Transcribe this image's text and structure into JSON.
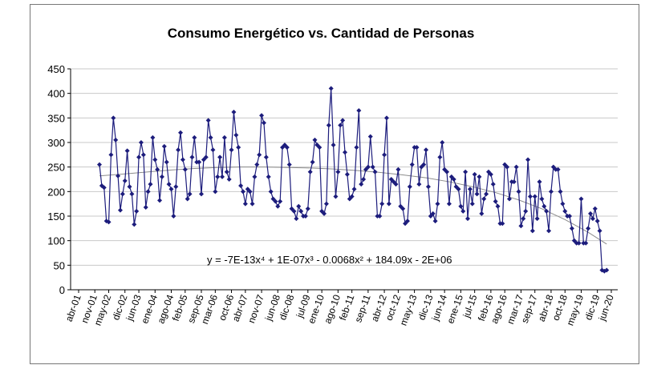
{
  "chart_data": {
    "type": "line",
    "title": "Consumo Energético vs. Cantidad de Personas",
    "annotation": "y = -7E-13x⁴ + 1E-07x³ - 0.0068x² + 184.09x - 2E+06",
    "categories": [
      "abr-01",
      null,
      null,
      null,
      null,
      null,
      null,
      "nov-01",
      null,
      null,
      null,
      null,
      null,
      "may-02",
      null,
      null,
      null,
      null,
      null,
      null,
      "dic-02",
      null,
      null,
      null,
      null,
      null,
      "jun-03",
      null,
      null,
      null,
      null,
      null,
      null,
      "ene-04",
      null,
      null,
      null,
      null,
      null,
      null,
      "ago-04",
      null,
      null,
      null,
      null,
      null,
      "feb-05",
      null,
      null,
      null,
      null,
      null,
      null,
      "sep-05",
      null,
      null,
      null,
      null,
      null,
      "mar-06",
      null,
      null,
      null,
      null,
      null,
      null,
      "oct-06",
      null,
      null,
      null,
      null,
      null,
      "abr-07",
      null,
      null,
      null,
      null,
      null,
      null,
      "nov-07",
      null,
      null,
      null,
      null,
      null,
      null,
      "jun-08",
      null,
      null,
      null,
      null,
      null,
      "dic-08",
      null,
      null,
      null,
      null,
      null,
      null,
      "jul-09",
      null,
      null,
      null,
      null,
      null,
      "ene-10",
      null,
      null,
      null,
      null,
      null,
      null,
      "ago-10",
      null,
      null,
      null,
      null,
      null,
      "feb-11",
      null,
      null,
      null,
      null,
      null,
      null,
      "sep-11",
      null,
      null,
      null,
      null,
      null,
      null,
      "abr-12",
      null,
      null,
      null,
      null,
      null,
      "oct-12",
      null,
      null,
      null,
      null,
      null,
      null,
      "may-13",
      null,
      null,
      null,
      null,
      null,
      null,
      "dic-13",
      null,
      null,
      null,
      null,
      null,
      "jun-14",
      null,
      null,
      null,
      null,
      null,
      null,
      "ene-15",
      null,
      null,
      null,
      null,
      null,
      "jul-15",
      null,
      null,
      null,
      null,
      null,
      null,
      "feb-16",
      null,
      null,
      null,
      null,
      null,
      "ago-16",
      null,
      null,
      null,
      null,
      null,
      null,
      "mar-17",
      null,
      null,
      null,
      null,
      null,
      "sep-17",
      null,
      null,
      null,
      null,
      null,
      null,
      "abr-18",
      null,
      null,
      null,
      null,
      null,
      "oct-18",
      null,
      null,
      null,
      null,
      null,
      null,
      "may-19",
      null,
      null,
      null,
      null,
      null,
      null,
      "dic-19",
      null,
      null,
      null,
      null,
      null,
      "jun-20"
    ],
    "series": [
      {
        "color": "#1c1c7c",
        "values": [
          null,
          null,
          null,
          null,
          null,
          null,
          null,
          null,
          null,
          255,
          212,
          208,
          140,
          138,
          275,
          350,
          305,
          232,
          162,
          195,
          222,
          283,
          210,
          195,
          133,
          160,
          270,
          300,
          275,
          168,
          200,
          215,
          310,
          265,
          245,
          182,
          230,
          292,
          260,
          215,
          205,
          150,
          210,
          285,
          320,
          265,
          245,
          185,
          195,
          270,
          310,
          260,
          260,
          195,
          265,
          270,
          345,
          310,
          285,
          200,
          230,
          270,
          230,
          310,
          240,
          225,
          285,
          362,
          315,
          290,
          212,
          200,
          175,
          205,
          200,
          175,
          230,
          255,
          275,
          355,
          340,
          270,
          230,
          200,
          185,
          180,
          170,
          180,
          290,
          295,
          290,
          255,
          165,
          160,
          145,
          170,
          160,
          150,
          150,
          165,
          240,
          260,
          305,
          295,
          290,
          160,
          155,
          175,
          335,
          410,
          295,
          190,
          240,
          335,
          345,
          280,
          235,
          185,
          190,
          205,
          290,
          365,
          215,
          225,
          245,
          250,
          312,
          250,
          240,
          150,
          150,
          175,
          275,
          350,
          175,
          225,
          220,
          215,
          245,
          170,
          165,
          135,
          140,
          210,
          255,
          290,
          290,
          215,
          250,
          255,
          285,
          210,
          150,
          155,
          140,
          175,
          270,
          300,
          245,
          240,
          175,
          230,
          225,
          210,
          205,
          170,
          160,
          240,
          145,
          205,
          175,
          235,
          195,
          230,
          155,
          185,
          195,
          240,
          235,
          215,
          180,
          170,
          135,
          135,
          255,
          250,
          185,
          220,
          220,
          250,
          200,
          130,
          145,
          160,
          265,
          190,
          120,
          190,
          145,
          220,
          185,
          170,
          160,
          120,
          200,
          250,
          245,
          245,
          200,
          175,
          160,
          150,
          150,
          125,
          100,
          95,
          95,
          185,
          95,
          95,
          125,
          155,
          145,
          165,
          140,
          120,
          40,
          38,
          40,
          null,
          null
        ]
      }
    ],
    "trendline": {
      "color": "#8c8c8c",
      "x": [
        9,
        20,
        30,
        40,
        50,
        60,
        70,
        80,
        90,
        100,
        110,
        120,
        130,
        140,
        150,
        160,
        170,
        180,
        190,
        200,
        210,
        220,
        228
      ],
      "values": [
        232,
        236,
        240,
        244,
        247,
        249,
        250,
        250,
        249,
        248,
        246,
        243,
        239,
        234,
        228,
        220,
        210,
        198,
        183,
        165,
        143,
        117,
        93
      ]
    },
    "ylim": [
      0,
      450
    ],
    "yticks": [
      0,
      50,
      100,
      150,
      200,
      250,
      300,
      350,
      400,
      450
    ],
    "grid": true
  }
}
